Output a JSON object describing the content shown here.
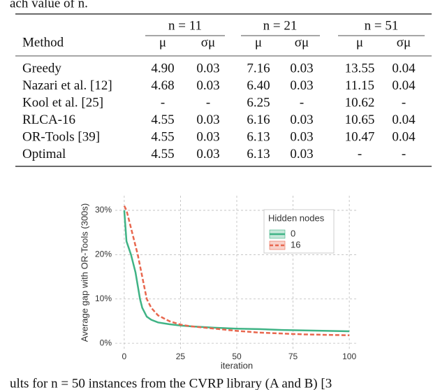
{
  "intro": "ach value of n.",
  "table": {
    "groups": [
      "n = 11",
      "n = 21",
      "n = 51"
    ],
    "columns": [
      "Method",
      "μ",
      "σμ",
      "μ",
      "σμ",
      "μ",
      "σμ"
    ],
    "rows": [
      [
        "Greedy",
        "4.90",
        "0.03",
        "7.16",
        "0.03",
        "13.55",
        "0.04"
      ],
      [
        "Nazari et al. [12]",
        "4.68",
        "0.03",
        "6.40",
        "0.03",
        "11.15",
        "0.04"
      ],
      [
        "Kool et al. [25]",
        "-",
        "-",
        "6.25",
        "-",
        "10.62",
        "-"
      ],
      [
        "RLCA-16",
        "4.55",
        "0.03",
        "6.16",
        "0.03",
        "10.65",
        "0.04"
      ],
      [
        "OR-Tools [39]",
        "4.55",
        "0.03",
        "6.13",
        "0.03",
        "10.47",
        "0.04"
      ],
      [
        "Optimal",
        "4.55",
        "0.03",
        "6.13",
        "0.03",
        "-",
        "-"
      ]
    ]
  },
  "chart_data": {
    "type": "line",
    "x_label": "iteration",
    "y_label": "Average gap with OR-Tools (300s)",
    "legend_title": "Hidden nodes",
    "legend_position": "top-right",
    "grid": true,
    "x": [
      0,
      1,
      2,
      3,
      4,
      5,
      6,
      7,
      8,
      9,
      10,
      12,
      15,
      20,
      25,
      30,
      40,
      50,
      60,
      70,
      80,
      90,
      100
    ],
    "series": [
      {
        "name": "0",
        "color": "#3fb385",
        "dashed": false,
        "values": [
          30,
          23,
          21.5,
          20,
          18,
          16,
          13,
          10,
          8,
          7,
          6,
          5.3,
          4.7,
          4.3,
          4.0,
          3.8,
          3.5,
          3.3,
          3.2,
          3.0,
          2.9,
          2.8,
          2.7
        ]
      },
      {
        "name": "16",
        "color": "#e8674e",
        "dashed": true,
        "values": [
          31,
          30,
          28,
          26,
          24,
          22,
          20,
          17.5,
          15,
          12.5,
          10,
          8,
          6.3,
          5,
          4.2,
          3.8,
          3.3,
          2.8,
          2.4,
          2.2,
          2.0,
          1.9,
          1.8
        ]
      }
    ],
    "xlim": [
      -4,
      104
    ],
    "ylim": [
      -1.4,
      33.3
    ],
    "xticks": [
      0,
      25,
      50,
      75,
      100
    ],
    "yticks": [
      {
        "value": 0,
        "label": "0%"
      },
      {
        "value": 10,
        "label": "10%"
      },
      {
        "value": 20,
        "label": "20%"
      },
      {
        "value": 30,
        "label": "30%"
      }
    ]
  },
  "caption": "ults for n = 50 instances from the CVRP library (A and B) [3"
}
